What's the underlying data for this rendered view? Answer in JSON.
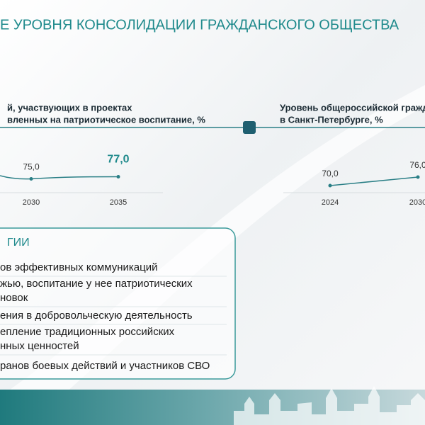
{
  "header": {
    "title": "Е УРОВНЯ КОНСОЛИДАЦИИ ГРАЖДАНСКОГО ОБЩЕСТВА"
  },
  "charts": [
    {
      "title": [
        "й, участвующих в проектах",
        "вленных на патриотическое воспитание, %"
      ],
      "categories": [
        "2030",
        "2035"
      ],
      "values": [
        75,
        77
      ],
      "value_labels": [
        "75,0",
        "77,0"
      ]
    },
    {
      "title": [
        "Уровень общероссийской гражда",
        "в Санкт-Петербурге, %"
      ],
      "categories": [
        "2024",
        "2030"
      ],
      "values": [
        70,
        76
      ],
      "value_labels": [
        "70,0",
        "76,0"
      ]
    }
  ],
  "box": {
    "heading": "ГИИ",
    "items": [
      [
        "ов эффективных коммуникаций"
      ],
      [
        "жью, воспитание у нее патриотических",
        "новок"
      ],
      [
        "ения в добровольческую деятельность"
      ],
      [
        "епление традиционных российских",
        "нных ценностей"
      ],
      [
        "ранов боевых действий и участников СВО"
      ]
    ]
  }
}
